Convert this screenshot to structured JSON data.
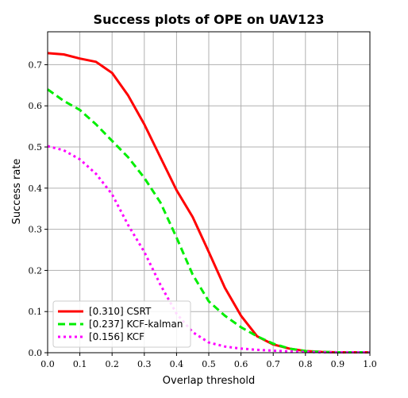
{
  "chart_data": {
    "type": "line",
    "title": "Success plots of OPE on UAV123",
    "xlabel": "Overlap threshold",
    "ylabel": "Success rate",
    "xlim": [
      0,
      1
    ],
    "ylim": [
      0,
      0.78
    ],
    "grid": true,
    "legend_position": "bottom-left",
    "x_ticks": [
      "0.0",
      "0.1",
      "0.2",
      "0.3",
      "0.4",
      "0.5",
      "0.6",
      "0.7",
      "0.8",
      "0.9",
      "1.0"
    ],
    "y_ticks": [
      "0.0",
      "0.1",
      "0.2",
      "0.3",
      "0.4",
      "0.5",
      "0.6",
      "0.7"
    ],
    "x": [
      0,
      0.05,
      0.1,
      0.15,
      0.2,
      0.25,
      0.3,
      0.35,
      0.4,
      0.45,
      0.5,
      0.55,
      0.6,
      0.65,
      0.7,
      0.75,
      0.8,
      0.85,
      0.9,
      0.95,
      1.0
    ],
    "series": [
      {
        "name": "[0.310] CSRT",
        "color": "#ff0000",
        "dash": "solid",
        "values": [
          0.728,
          0.725,
          0.715,
          0.707,
          0.68,
          0.625,
          0.555,
          0.475,
          0.395,
          0.33,
          0.245,
          0.158,
          0.09,
          0.04,
          0.02,
          0.01,
          0.004,
          0.002,
          0.001,
          0.001,
          0.001
        ]
      },
      {
        "name": "[0.237] KCF-kalman",
        "color": "#00ee00",
        "dash": "dashed",
        "values": [
          0.64,
          0.612,
          0.59,
          0.555,
          0.515,
          0.475,
          0.425,
          0.365,
          0.28,
          0.19,
          0.125,
          0.09,
          0.062,
          0.04,
          0.022,
          0.01,
          0.004,
          0.002,
          0.001,
          0.001,
          0.001
        ]
      },
      {
        "name": "[0.156] KCF",
        "color": "#ff00ff",
        "dash": "dotted",
        "values": [
          0.502,
          0.492,
          0.47,
          0.435,
          0.385,
          0.31,
          0.245,
          0.165,
          0.095,
          0.05,
          0.025,
          0.015,
          0.01,
          0.007,
          0.005,
          0.003,
          0.002,
          0.001,
          0.001,
          0.001,
          0.001
        ]
      }
    ]
  }
}
